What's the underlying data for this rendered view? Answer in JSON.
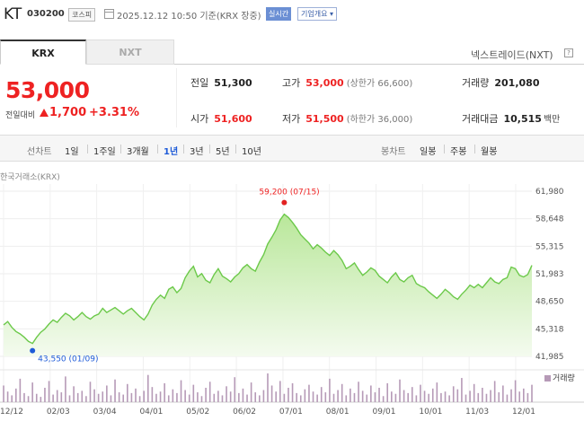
{
  "header": {
    "name": "KT",
    "code": "030200",
    "market": "코스피",
    "datetime": "2025.12.12 10:50 기준(KRX 장중)",
    "live_badge": "실시간",
    "company_button": "기업개요 ▾"
  },
  "tabs": {
    "krx": "KRX",
    "nxt": "NXT",
    "nxt_link": "넥스트레이드(NXT)",
    "help": "?"
  },
  "price": {
    "current": "53,000",
    "change_label": "전일대비",
    "change": "1,700",
    "change_pct": "+3.31%"
  },
  "stats": {
    "prev_close": {
      "label": "전일",
      "value": "51,300"
    },
    "open": {
      "label": "시가",
      "value": "51,600"
    },
    "high": {
      "label": "고가",
      "value": "53,000",
      "sub": "(상한가 66,600)"
    },
    "low": {
      "label": "저가",
      "value": "51,500",
      "sub": "(하한가 36,000)"
    },
    "volume": {
      "label": "거래량",
      "value": "201,080"
    },
    "amount": {
      "label": "거래대금",
      "value": "10,515",
      "unit": "백만"
    }
  },
  "periods": {
    "line_label": "선차트",
    "items": [
      "1일",
      "1주일",
      "3개월",
      "1년",
      "3년",
      "5년",
      "10년"
    ],
    "active": "1년",
    "candle_label": "봉차트",
    "candle_items": [
      "일봉",
      "주봉",
      "월봉"
    ]
  },
  "colors": {
    "up": "#e22222",
    "down": "#1e5bd8",
    "area_line": "#6cc94a",
    "volume": "#b69ab7"
  },
  "chart_data": {
    "type": "area",
    "source_label": "한국거래소(KRX)",
    "y_ticks": [
      "61,980",
      "58,648",
      "55,315",
      "51,983",
      "48,650",
      "45,318",
      "41,985"
    ],
    "ylim": [
      41985,
      61980
    ],
    "x_ticks": [
      "12/12",
      "02/03",
      "03/04",
      "04/01",
      "05/02",
      "06/02",
      "07/01",
      "08/01",
      "09/01",
      "10/01",
      "11/03",
      "12/01"
    ],
    "max_annotation": {
      "label": "59,200 (07/15)",
      "value": 59200
    },
    "min_annotation": {
      "label": "43,550 (01/09)",
      "value": 43550
    },
    "volume_legend": "거래량",
    "series": [
      {
        "values": [
          45800,
          46200,
          45500,
          45000,
          44700,
          44300,
          43800,
          43550,
          44300,
          44900,
          45300,
          45900,
          46400,
          46100,
          46700,
          47200,
          46900,
          46400,
          46800,
          47300,
          46800,
          46500,
          46900,
          47100,
          47800,
          47300,
          47600,
          47900,
          47500,
          47100,
          47500,
          47800,
          47300,
          46800,
          46400,
          47100,
          48200,
          48900,
          49400,
          49000,
          50100,
          50400,
          49700,
          50200,
          51500,
          52300,
          52900,
          51600,
          52000,
          51200,
          50900,
          51900,
          52600,
          51700,
          51400,
          51000,
          51600,
          52000,
          52700,
          53100,
          52600,
          52300,
          53400,
          54300,
          55600,
          56400,
          57300,
          58500,
          59200,
          58800,
          58200,
          57500,
          56700,
          56200,
          55700,
          55000,
          55500,
          55100,
          54600,
          54200,
          54800,
          54300,
          53600,
          52600,
          52900,
          53300,
          52500,
          51800,
          52200,
          52700,
          52400,
          51700,
          51300,
          50900,
          51600,
          52100,
          51300,
          51000,
          51500,
          51800,
          50800,
          50500,
          50300,
          49800,
          49400,
          49000,
          49500,
          50100,
          49700,
          49200,
          48900,
          49500,
          50000,
          50600,
          50300,
          50700,
          50300,
          50900,
          51500,
          51000,
          50800,
          51300,
          51500,
          52800,
          52600,
          51800,
          51600,
          51900,
          53000
        ]
      }
    ],
    "volume": [
      22,
      14,
      9,
      18,
      31,
      12,
      8,
      26,
      11,
      7,
      19,
      28,
      10,
      16,
      13,
      34,
      9,
      21,
      12,
      15,
      8,
      27,
      17,
      11,
      14,
      22,
      9,
      30,
      13,
      10,
      24,
      12,
      18,
      8,
      15,
      36,
      20,
      11,
      14,
      25,
      9,
      17,
      12,
      29,
      16,
      10,
      23,
      13,
      8,
      19,
      27,
      11,
      15,
      9,
      21,
      14,
      33,
      12,
      18,
      10,
      26,
      13,
      9,
      16,
      38,
      22,
      14,
      28,
      11,
      19,
      25,
      12,
      9,
      17,
      23,
      14,
      10,
      20,
      13,
      31,
      11,
      16,
      24,
      9,
      18,
      12,
      27,
      15,
      10,
      22,
      13,
      19,
      8,
      25,
      14,
      11,
      30,
      16,
      12,
      20,
      9,
      23,
      15,
      11,
      18,
      26,
      12,
      14,
      9,
      21,
      17,
      32,
      10,
      15,
      24,
      12,
      19,
      11,
      16,
      28,
      13,
      22,
      10,
      17,
      29,
      14,
      18,
      12,
      23
    ]
  }
}
